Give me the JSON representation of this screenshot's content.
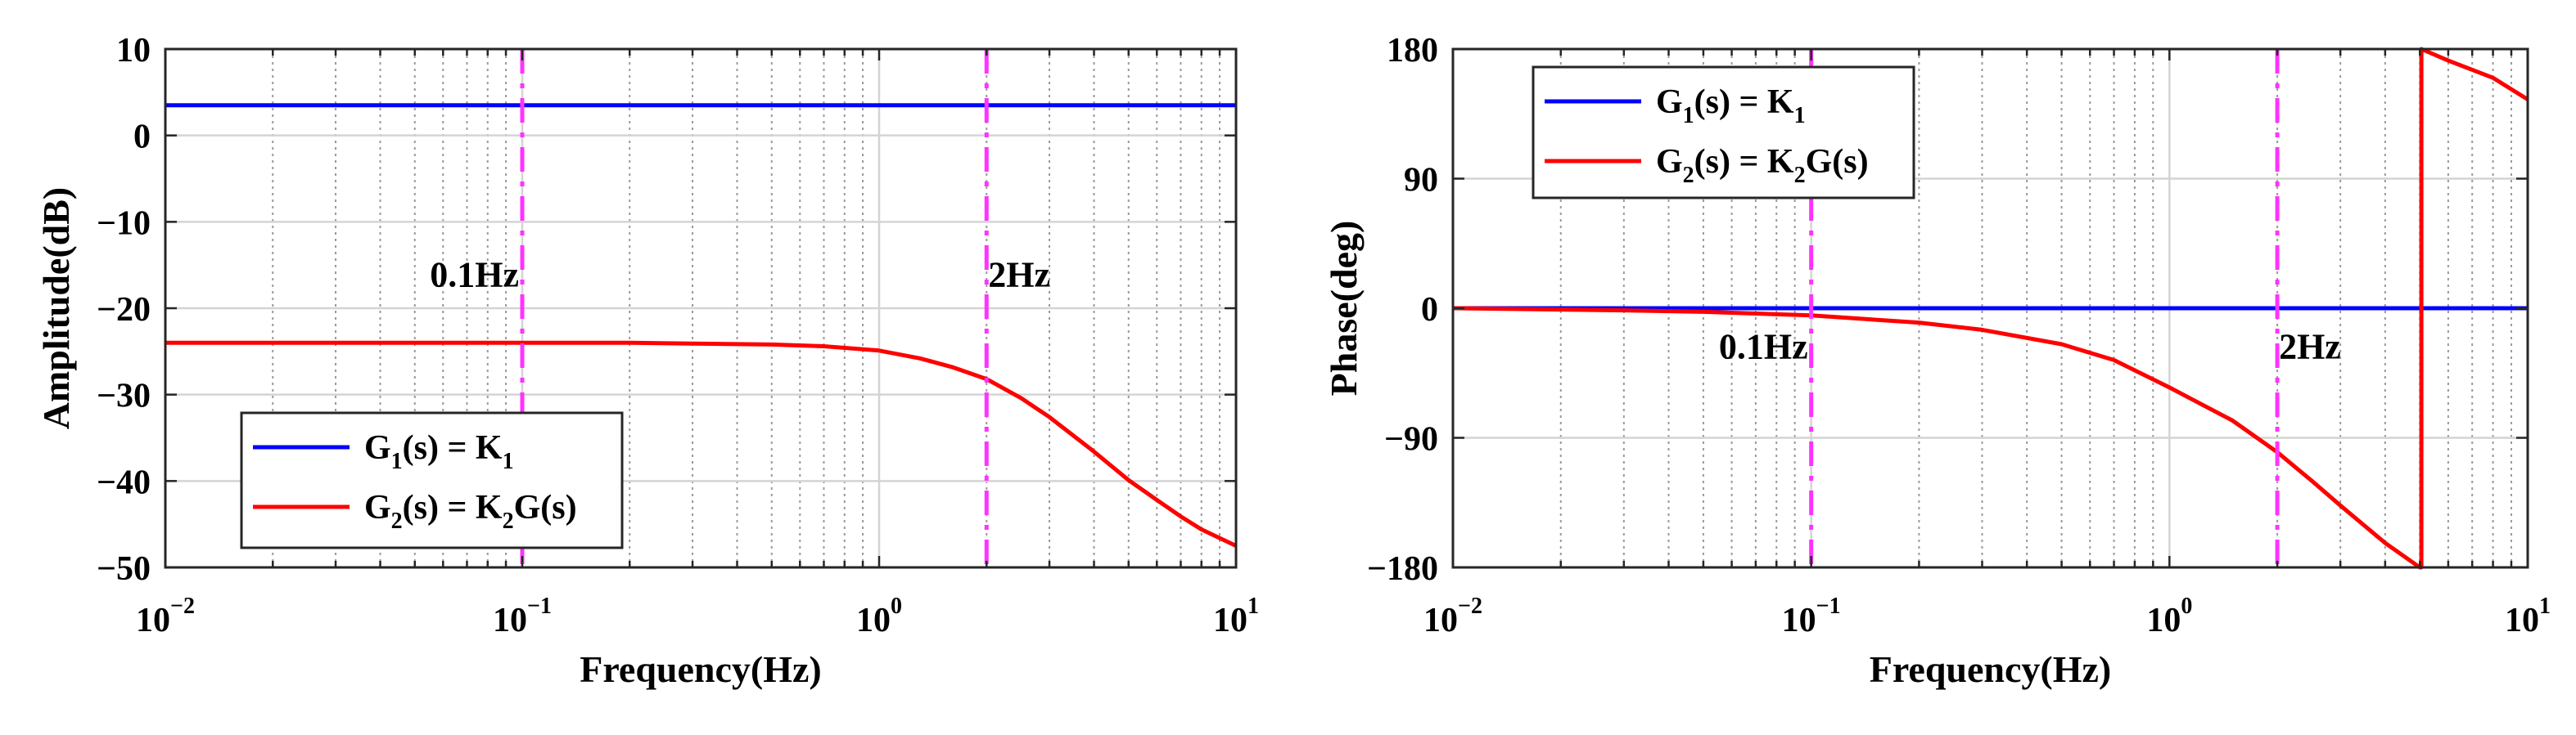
{
  "chart_data": [
    {
      "type": "line",
      "xscale": "log",
      "xlim": [
        0.01,
        10
      ],
      "ylim": [
        -50,
        10
      ],
      "xlabel": "Frequency(Hz)",
      "ylabel": "Amplitude(dB)",
      "grid": true,
      "x_tick_labels": [
        {
          "base": "10",
          "exp": "−2"
        },
        {
          "base": "10",
          "exp": "−1"
        },
        {
          "base": "10",
          "exp": "0"
        },
        {
          "base": "10",
          "exp": "1"
        }
      ],
      "y_ticks": [
        10,
        0,
        -10,
        -20,
        -30,
        -40,
        -50
      ],
      "y_tick_labels": [
        "10",
        "0",
        "−10",
        "−20",
        "−30",
        "−40",
        "−50"
      ],
      "legend": {
        "position": "lower-left",
        "entries": [
          {
            "main": "G",
            "sub": "1",
            "mid": "(s) = K",
            "sub2": "1",
            "end": "",
            "color": "#0000ff"
          },
          {
            "main": "G",
            "sub": "2",
            "mid": "(s) = K",
            "sub2": "2",
            "end": "G(s)",
            "color": "#ff0000"
          }
        ]
      },
      "vlines": [
        {
          "x": 0.1,
          "label": "0.1Hz",
          "label_y": -17.5,
          "label_side": "left",
          "color": "#ff33ff"
        },
        {
          "x": 2,
          "label": "2Hz",
          "label_y": -17.5,
          "label_side": "right",
          "color": "#ff33ff"
        }
      ],
      "series": [
        {
          "color": "#0000ff",
          "x": [
            0.01,
            10
          ],
          "y": [
            3.5,
            3.5
          ]
        },
        {
          "color": "#ff0000",
          "x": [
            0.01,
            0.05,
            0.1,
            0.2,
            0.3,
            0.5,
            0.7,
            1.0,
            1.3,
            1.6,
            2.0,
            2.5,
            3.0,
            4.0,
            5.0,
            6.0,
            7.0,
            8.0,
            10.0
          ],
          "y": [
            -24.0,
            -24.0,
            -24.0,
            -24.0,
            -24.1,
            -24.2,
            -24.4,
            -24.9,
            -25.8,
            -26.8,
            -28.2,
            -30.4,
            -32.6,
            -36.6,
            -39.9,
            -42.2,
            -44.1,
            -45.6,
            -47.5
          ]
        }
      ]
    },
    {
      "type": "line",
      "xscale": "log",
      "xlim": [
        0.01,
        10
      ],
      "ylim": [
        -180,
        180
      ],
      "xlabel": "Frequency(Hz)",
      "ylabel": "Phase(deg)",
      "grid": true,
      "x_tick_labels": [
        {
          "base": "10",
          "exp": "−2"
        },
        {
          "base": "10",
          "exp": "−1"
        },
        {
          "base": "10",
          "exp": "0"
        },
        {
          "base": "10",
          "exp": "1"
        }
      ],
      "y_ticks": [
        180,
        90,
        0,
        -90,
        -180
      ],
      "y_tick_labels": [
        "180",
        "90",
        "0",
        "−90",
        "−180"
      ],
      "legend": {
        "position": "top-left",
        "entries": [
          {
            "main": "G",
            "sub": "1",
            "mid": "(s) = K",
            "sub2": "1",
            "end": "",
            "color": "#0000ff"
          },
          {
            "main": "G",
            "sub": "2",
            "mid": "(s) = K",
            "sub2": "2",
            "end": "G(s)",
            "color": "#ff0000"
          }
        ]
      },
      "vlines": [
        {
          "x": 0.1,
          "label": "0.1Hz",
          "label_y": -35,
          "label_side": "left",
          "color": "#ff33ff"
        },
        {
          "x": 2,
          "label": "2Hz",
          "label_y": -35,
          "label_side": "right",
          "color": "#ff33ff"
        }
      ],
      "series": [
        {
          "color": "#0000ff",
          "x": [
            0.01,
            10
          ],
          "y": [
            0,
            0
          ]
        },
        {
          "color": "#ff0000",
          "x": [
            0.01,
            0.03,
            0.05,
            0.1,
            0.2,
            0.3,
            0.5,
            0.7,
            1.0,
            1.5,
            2.0,
            2.5,
            3.0,
            4.0,
            5.0,
            5.05,
            5.05,
            6.0,
            8.0,
            10.0
          ],
          "y": [
            0,
            -1.5,
            -2.5,
            -5,
            -10,
            -15,
            -25,
            -36,
            -55,
            -78,
            -100,
            -120,
            -137,
            -163,
            -180,
            -180,
            180,
            172,
            160,
            145
          ]
        }
      ]
    }
  ]
}
